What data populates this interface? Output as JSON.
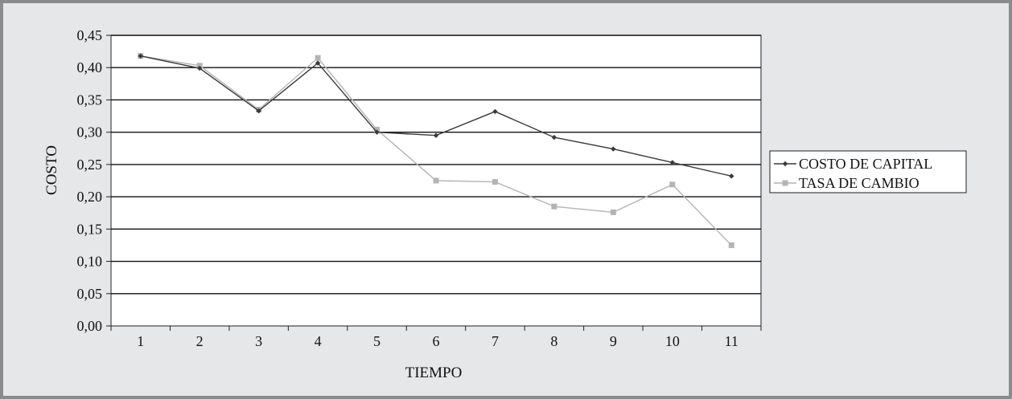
{
  "chart_data": {
    "type": "line",
    "title": "",
    "xlabel": "TIEMPO",
    "ylabel": "COSTO",
    "categories": [
      "1",
      "2",
      "3",
      "4",
      "5",
      "6",
      "7",
      "8",
      "9",
      "10",
      "11"
    ],
    "y_ticks": [
      "0,00",
      "0,05",
      "0,10",
      "0,15",
      "0,20",
      "0,25",
      "0,30",
      "0,35",
      "0,40",
      "0,45"
    ],
    "ylim": [
      0,
      0.45
    ],
    "grid": true,
    "legend_position": "right",
    "series": [
      {
        "name": "COSTO DE CAPITAL",
        "color": "#3a3a3a",
        "marker": "diamond",
        "values": [
          0.418,
          0.399,
          0.333,
          0.407,
          0.3,
          0.295,
          0.332,
          0.292,
          0.274,
          0.253,
          0.232
        ]
      },
      {
        "name": "TASA DE CAMBIO",
        "color": "#b4b4b4",
        "marker": "square",
        "values": [
          0.418,
          0.403,
          0.335,
          0.415,
          0.304,
          0.225,
          0.223,
          0.185,
          0.176,
          0.219,
          0.125
        ]
      }
    ]
  }
}
